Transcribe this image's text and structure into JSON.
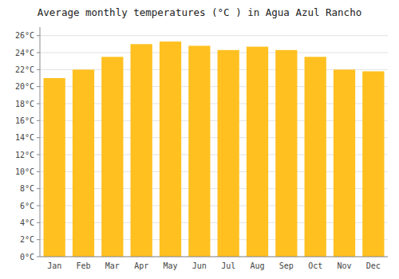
{
  "chart_data": {
    "type": "bar",
    "title": "Average monthly temperatures (°C ) in Agua Azul Rancho",
    "categories": [
      "Jan",
      "Feb",
      "Mar",
      "Apr",
      "May",
      "Jun",
      "Jul",
      "Aug",
      "Sep",
      "Oct",
      "Nov",
      "Dec"
    ],
    "values": [
      21.0,
      22.0,
      23.5,
      25.0,
      25.3,
      24.8,
      24.3,
      24.7,
      24.3,
      23.5,
      22.0,
      21.8
    ],
    "color": "#FFC020",
    "ylim": [
      0,
      27
    ],
    "yticks": [
      {
        "value": 0,
        "label": "0°C"
      },
      {
        "value": 2,
        "label": "2°C"
      },
      {
        "value": 4,
        "label": "4°C"
      },
      {
        "value": 6,
        "label": "6°C"
      },
      {
        "value": 8,
        "label": "8°C"
      },
      {
        "value": 10,
        "label": "10°C"
      },
      {
        "value": 12,
        "label": "12°C"
      },
      {
        "value": 14,
        "label": "14°C"
      },
      {
        "value": 16,
        "label": "16°C"
      },
      {
        "value": 18,
        "label": "18°C"
      },
      {
        "value": 20,
        "label": "20°C"
      },
      {
        "value": 22,
        "label": "22°C"
      },
      {
        "value": 24,
        "label": "24°C"
      },
      {
        "value": 26,
        "label": "26°C"
      }
    ],
    "grid": true
  }
}
